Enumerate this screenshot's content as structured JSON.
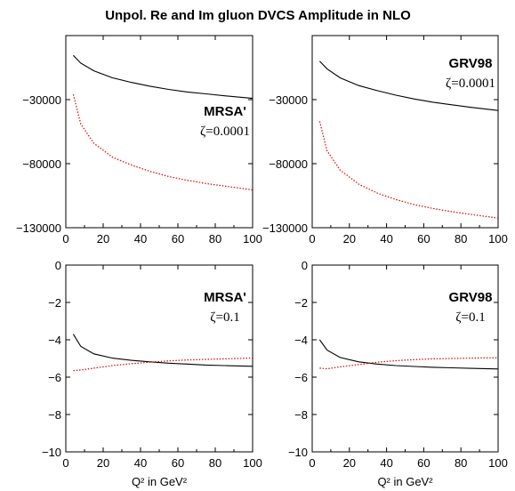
{
  "title": "Unpol. Re and Im gluon DVCS Amplitude in NLO",
  "colors": {
    "real": "#000000",
    "imag": "#e00000"
  },
  "chart_data": [
    {
      "type": "line",
      "set": "MRSA'",
      "zeta": "ζ=0.0001",
      "xlabel": "",
      "xlim": [
        0,
        100
      ],
      "ylim": [
        -130000,
        20000
      ],
      "xticks": [
        0,
        20,
        40,
        60,
        80,
        100
      ],
      "xtick_labels": [
        "0",
        "20",
        "40",
        "60",
        "80",
        "100"
      ],
      "yticks": [
        -130000,
        -80000,
        -30000
      ],
      "ytick_labels": [
        "−130000",
        "−80000",
        "−30000"
      ],
      "x": [
        4,
        8,
        15,
        25,
        35,
        45,
        55,
        65,
        75,
        85,
        100
      ],
      "series": [
        {
          "style": "solid",
          "color": "#000000",
          "y": [
            4500,
            -1500,
            -7500,
            -13000,
            -16500,
            -19500,
            -22000,
            -24000,
            -25500,
            -27000,
            -29000
          ]
        },
        {
          "style": "dotted",
          "color": "#e00000",
          "y": [
            -26000,
            -49000,
            -64000,
            -75000,
            -81000,
            -86000,
            -90000,
            -93000,
            -95500,
            -97500,
            -100500
          ]
        }
      ]
    },
    {
      "type": "line",
      "set": "GRV98",
      "zeta": "ζ=0.0001",
      "xlabel": "",
      "xlim": [
        0,
        100
      ],
      "ylim": [
        -130000,
        20000
      ],
      "xticks": [
        0,
        20,
        40,
        60,
        80,
        100
      ],
      "xtick_labels": [
        "0",
        "20",
        "40",
        "60",
        "80",
        "100"
      ],
      "yticks": [
        -130000,
        -80000,
        -30000
      ],
      "ytick_labels": [
        "−130000",
        "−80000",
        "−30000"
      ],
      "x": [
        4,
        8,
        15,
        25,
        35,
        45,
        55,
        65,
        75,
        85,
        100
      ],
      "series": [
        {
          "style": "solid",
          "color": "#000000",
          "y": [
            0,
            -6000,
            -13000,
            -19000,
            -23000,
            -26500,
            -29500,
            -32000,
            -34000,
            -36000,
            -38500
          ]
        },
        {
          "style": "dotted",
          "color": "#e00000",
          "y": [
            -47000,
            -70000,
            -85000,
            -96000,
            -103000,
            -108000,
            -112000,
            -115000,
            -117500,
            -119500,
            -122500
          ]
        }
      ]
    },
    {
      "type": "line",
      "set": "MRSA'",
      "zeta": "ζ=0.1",
      "xlabel": "Q² in GeV²",
      "xlim": [
        0,
        100
      ],
      "ylim": [
        -10,
        0
      ],
      "xticks": [
        0,
        20,
        40,
        60,
        80,
        100
      ],
      "xtick_labels": [
        "0",
        "20",
        "40",
        "60",
        "80",
        "100"
      ],
      "yticks": [
        -10,
        -8,
        -6,
        -4,
        -2,
        0
      ],
      "ytick_labels": [
        "−10",
        "−8",
        "−6",
        "−4",
        "−2",
        "0"
      ],
      "x": [
        4,
        8,
        15,
        25,
        35,
        45,
        55,
        65,
        75,
        85,
        100
      ],
      "series": [
        {
          "style": "solid",
          "color": "#000000",
          "y": [
            -3.7,
            -4.35,
            -4.75,
            -4.98,
            -5.1,
            -5.18,
            -5.25,
            -5.3,
            -5.35,
            -5.38,
            -5.42
          ]
        },
        {
          "style": "dotted",
          "color": "#e00000",
          "y": [
            -5.65,
            -5.62,
            -5.52,
            -5.38,
            -5.28,
            -5.2,
            -5.13,
            -5.08,
            -5.05,
            -5.02,
            -4.98
          ]
        }
      ]
    },
    {
      "type": "line",
      "set": "GRV98",
      "zeta": "ζ=0.1",
      "xlabel": "Q² in GeV²",
      "xlim": [
        0,
        100
      ],
      "ylim": [
        -10,
        0
      ],
      "xticks": [
        0,
        20,
        40,
        60,
        80,
        100
      ],
      "xtick_labels": [
        "0",
        "20",
        "40",
        "60",
        "80",
        "100"
      ],
      "yticks": [
        -10,
        -8,
        -6,
        -4,
        -2,
        0
      ],
      "ytick_labels": [
        "−10",
        "−8",
        "−6",
        "−4",
        "−2",
        "0"
      ],
      "x": [
        4,
        8,
        15,
        25,
        35,
        45,
        55,
        65,
        75,
        85,
        100
      ],
      "series": [
        {
          "style": "solid",
          "color": "#000000",
          "y": [
            -4.0,
            -4.55,
            -4.95,
            -5.18,
            -5.3,
            -5.38,
            -5.43,
            -5.47,
            -5.5,
            -5.53,
            -5.56
          ]
        },
        {
          "style": "dotted",
          "color": "#e00000",
          "y": [
            -5.52,
            -5.55,
            -5.45,
            -5.33,
            -5.2,
            -5.12,
            -5.06,
            -5.02,
            -5.0,
            -4.98,
            -4.96
          ]
        }
      ]
    }
  ]
}
